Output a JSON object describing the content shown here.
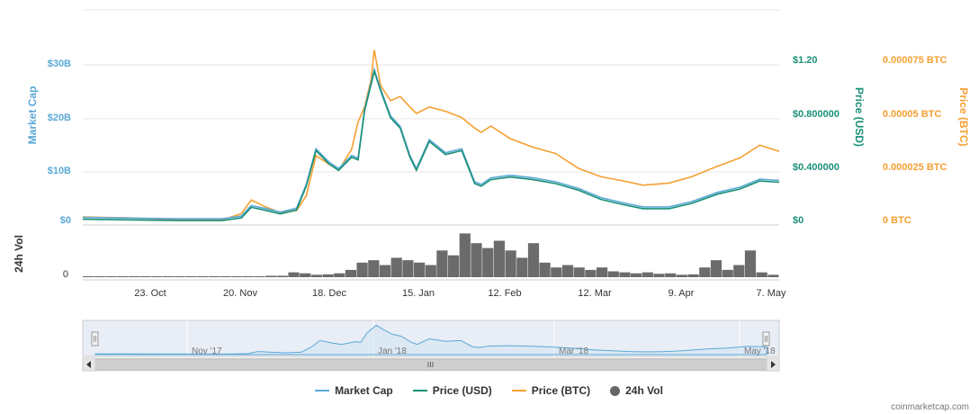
{
  "chart_data": {
    "type": "line",
    "left_axis": {
      "title": "Market Cap",
      "ticks": [
        "$0",
        "$10B",
        "$20B",
        "$30B"
      ],
      "range": [
        0,
        30
      ]
    },
    "right_axis_usd": {
      "title": "Price (USD)",
      "ticks": [
        "$0",
        "$0.400000",
        "$0.800000",
        "$1.20"
      ],
      "range": [
        0,
        1.2
      ]
    },
    "right_axis_btc": {
      "title": "Price (BTC)",
      "ticks": [
        "0 BTC",
        "0.000025 BTC",
        "0.00005 BTC",
        "0.000075 BTC"
      ],
      "range": [
        0,
        7.5e-05
      ]
    },
    "volume_axis": {
      "title": "24h Vol",
      "ticks": [
        "0"
      ]
    },
    "x_ticks": [
      "23. Oct",
      "20. Nov",
      "18. Dec",
      "15. Jan",
      "12. Feb",
      "12. Mar",
      "9. Apr",
      "7. May"
    ],
    "navigator_ticks": [
      "Nov '17",
      "Jan '18",
      "Mar '18",
      "May '18"
    ],
    "series": [
      {
        "name": "Market Cap",
        "color": "#5aa9d6"
      },
      {
        "name": "Price (USD)",
        "color": "#1a9077",
        "points": [
          [
            "2017-10-06",
            0.03
          ],
          [
            "2017-10-20",
            0.025
          ],
          [
            "2017-11-05",
            0.02
          ],
          [
            "2017-11-18",
            0.02
          ],
          [
            "2017-11-24",
            0.04
          ],
          [
            "2017-11-27",
            0.12
          ],
          [
            "2017-12-01",
            0.1
          ],
          [
            "2017-12-06",
            0.07
          ],
          [
            "2017-12-11",
            0.1
          ],
          [
            "2017-12-14",
            0.28
          ],
          [
            "2017-12-17",
            0.55
          ],
          [
            "2017-12-21",
            0.45
          ],
          [
            "2017-12-24",
            0.4
          ],
          [
            "2017-12-28",
            0.5
          ],
          [
            "2017-12-30",
            0.48
          ],
          [
            "2018-01-01",
            0.85
          ],
          [
            "2018-01-03",
            1.05
          ],
          [
            "2018-01-04",
            1.15
          ],
          [
            "2018-01-06",
            1.0
          ],
          [
            "2018-01-09",
            0.8
          ],
          [
            "2018-01-12",
            0.72
          ],
          [
            "2018-01-15",
            0.5
          ],
          [
            "2018-01-17",
            0.4
          ],
          [
            "2018-01-21",
            0.62
          ],
          [
            "2018-01-26",
            0.52
          ],
          [
            "2018-01-31",
            0.55
          ],
          [
            "2018-02-04",
            0.3
          ],
          [
            "2018-02-06",
            0.28
          ],
          [
            "2018-02-09",
            0.33
          ],
          [
            "2018-02-15",
            0.35
          ],
          [
            "2018-02-22",
            0.33
          ],
          [
            "2018-03-01",
            0.3
          ],
          [
            "2018-03-08",
            0.25
          ],
          [
            "2018-03-15",
            0.18
          ],
          [
            "2018-03-22",
            0.14
          ],
          [
            "2018-03-28",
            0.11
          ],
          [
            "2018-04-05",
            0.11
          ],
          [
            "2018-04-12",
            0.15
          ],
          [
            "2018-04-20",
            0.22
          ],
          [
            "2018-04-27",
            0.26
          ],
          [
            "2018-05-03",
            0.32
          ],
          [
            "2018-05-09",
            0.31
          ]
        ]
      },
      {
        "name": "Price (BTC)",
        "color": "#f5a032",
        "points": [
          [
            "2017-10-06",
            3e-06
          ],
          [
            "2017-10-20",
            2.5e-06
          ],
          [
            "2017-11-05",
            1.6e-06
          ],
          [
            "2017-11-18",
            1.6e-06
          ],
          [
            "2017-11-24",
            4.5e-06
          ],
          [
            "2017-11-27",
            1.1e-05
          ],
          [
            "2017-12-01",
            8e-06
          ],
          [
            "2017-12-06",
            5e-06
          ],
          [
            "2017-12-11",
            6e-06
          ],
          [
            "2017-12-14",
            1.3e-05
          ],
          [
            "2017-12-17",
            3.2e-05
          ],
          [
            "2017-12-21",
            2.8e-05
          ],
          [
            "2017-12-24",
            2.5e-05
          ],
          [
            "2017-12-28",
            3.5e-05
          ],
          [
            "2017-12-30",
            4.8e-05
          ],
          [
            "2018-01-01",
            5.5e-05
          ],
          [
            "2018-01-03",
            6.8e-05
          ],
          [
            "2018-01-04",
            8.2e-05
          ],
          [
            "2018-01-06",
            6.5e-05
          ],
          [
            "2018-01-09",
            5.8e-05
          ],
          [
            "2018-01-12",
            6e-05
          ],
          [
            "2018-01-15",
            5.5e-05
          ],
          [
            "2018-01-17",
            5.2e-05
          ],
          [
            "2018-01-21",
            5.5e-05
          ],
          [
            "2018-01-26",
            5.3e-05
          ],
          [
            "2018-01-31",
            5e-05
          ],
          [
            "2018-02-04",
            4.5e-05
          ],
          [
            "2018-02-06",
            4.3e-05
          ],
          [
            "2018-02-09",
            4.6e-05
          ],
          [
            "2018-02-15",
            4e-05
          ],
          [
            "2018-02-22",
            3.6e-05
          ],
          [
            "2018-03-01",
            3.3e-05
          ],
          [
            "2018-03-08",
            2.6e-05
          ],
          [
            "2018-03-15",
            2.2e-05
          ],
          [
            "2018-03-22",
            2e-05
          ],
          [
            "2018-03-28",
            1.8e-05
          ],
          [
            "2018-04-05",
            1.9e-05
          ],
          [
            "2018-04-12",
            2.2e-05
          ],
          [
            "2018-04-20",
            2.7e-05
          ],
          [
            "2018-04-27",
            3.1e-05
          ],
          [
            "2018-05-03",
            3.7e-05
          ],
          [
            "2018-05-09",
            3.4e-05
          ]
        ]
      }
    ],
    "volume_levels": [
      0.02,
      0.02,
      0.02,
      0.02,
      0.02,
      0.02,
      0.02,
      0.02,
      0.02,
      0.02,
      0.02,
      0.02,
      0.02,
      0.02,
      0.02,
      0.02,
      0.03,
      0.03,
      0.1,
      0.08,
      0.05,
      0.06,
      0.08,
      0.15,
      0.3,
      0.35,
      0.25,
      0.4,
      0.35,
      0.3,
      0.25,
      0.55,
      0.45,
      0.9,
      0.7,
      0.6,
      0.75,
      0.55,
      0.4,
      0.7,
      0.3,
      0.2,
      0.25,
      0.2,
      0.15,
      0.2,
      0.12,
      0.1,
      0.08,
      0.1,
      0.07,
      0.08,
      0.05,
      0.06,
      0.2,
      0.35,
      0.15,
      0.25,
      0.55,
      0.1,
      0.05
    ],
    "volume_range": [
      0,
      1
    ],
    "legend_position": "bottom"
  },
  "legend": [
    {
      "label": "Market Cap",
      "color": "#5aa9d6",
      "kind": "line"
    },
    {
      "label": "Price (USD)",
      "color": "#1a9077",
      "kind": "line"
    },
    {
      "label": "Price (BTC)",
      "color": "#f5a032",
      "kind": "line"
    },
    {
      "label": "24h Vol",
      "color": "#666666",
      "kind": "dot"
    }
  ],
  "credit": "coinmarketcap.com"
}
